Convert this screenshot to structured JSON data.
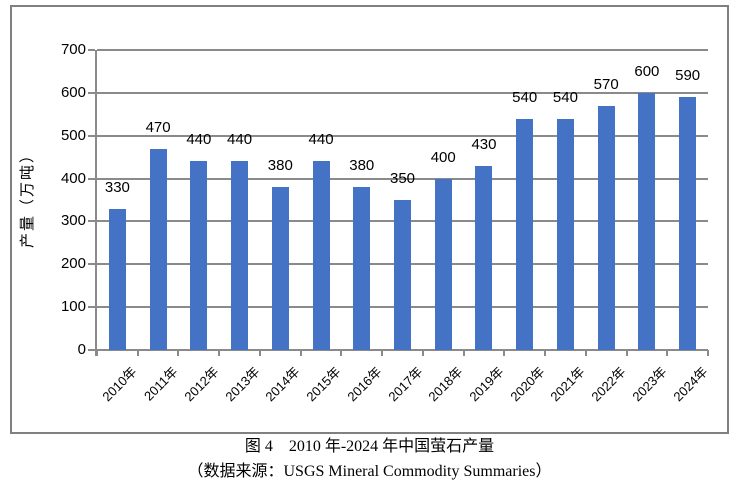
{
  "caption": {
    "line1": "图 4　2010 年-2024 年中国萤石产量",
    "line2": "（数据来源：USGS Mineral Commodity Summaries）"
  },
  "chart_data": {
    "type": "bar",
    "title": "图 4　2010 年-2024 年中国萤石产量",
    "source": "（数据来源：USGS Mineral Commodity Summaries）",
    "categories": [
      "2010年",
      "2011年",
      "2012年",
      "2013年",
      "2014年",
      "2015年",
      "2016年",
      "2017年",
      "2018年",
      "2019年",
      "2020年",
      "2021年",
      "2022年",
      "2023年",
      "2024年"
    ],
    "values": [
      330,
      470,
      440,
      440,
      380,
      440,
      380,
      350,
      400,
      430,
      540,
      540,
      570,
      600,
      590
    ],
    "xlabel": "",
    "ylabel": "产量（万吨）",
    "ylim": [
      0,
      700
    ],
    "yticks": [
      0,
      100,
      200,
      300,
      400,
      500,
      600,
      700
    ],
    "grid": true,
    "legend": false,
    "data_labels": true,
    "colors": {
      "bar": "#4472C4",
      "gridline": "#8a8a8a",
      "frame_border": "#808080",
      "text": "#000000"
    }
  }
}
